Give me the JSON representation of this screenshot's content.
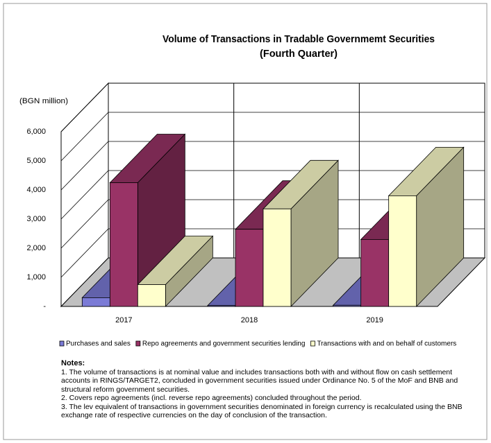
{
  "chart_data": {
    "type": "bar3d",
    "title": "Volume of Transactions in Tradable Governmemt Securities",
    "subtitle": "(Fourth Quarter)",
    "y_label": "(BGN million)",
    "categories": [
      "2017",
      "2018",
      "2019"
    ],
    "series": [
      {
        "name": "Purchases and sales",
        "color": "#7b7bd6",
        "values": [
          300,
          30,
          40
        ]
      },
      {
        "name": "Repo agreements and government securities lending",
        "color": "#993366",
        "values": [
          4250,
          2650,
          2300
        ]
      },
      {
        "name": "Transactions with and on behalf of customers",
        "color": "#ffffcc",
        "values": [
          750,
          3350,
          3800
        ]
      }
    ],
    "ylim": [
      0,
      6000
    ],
    "yticks": [
      {
        "value": 0,
        "label": "-"
      },
      {
        "value": 1000,
        "label": "1,000"
      },
      {
        "value": 2000,
        "label": "2,000"
      },
      {
        "value": 3000,
        "label": "3,000"
      },
      {
        "value": 4000,
        "label": "4,000"
      },
      {
        "value": 5000,
        "label": "5,000"
      },
      {
        "value": 6000,
        "label": "6,000"
      }
    ],
    "grid": true
  },
  "notes": {
    "title": "Notes:",
    "items": [
      "1.  The volume of transactions is at nominal value and includes transactions both with and without flow on cash settlement accounts in RINGS/TARGET2, concluded in government securities issued under Ordinance No. 5 of the MoF and BNB and structural reform government securities.",
      "2. Covers repo agreements (incl. reverse repo agreements) concluded throughout the period.",
      "3. The lev equivalent of transactions in government securities denominated in foreign currency is recalculated using the BNB exchange rate of respective currencies on the day of conclusion of the transaction."
    ]
  }
}
